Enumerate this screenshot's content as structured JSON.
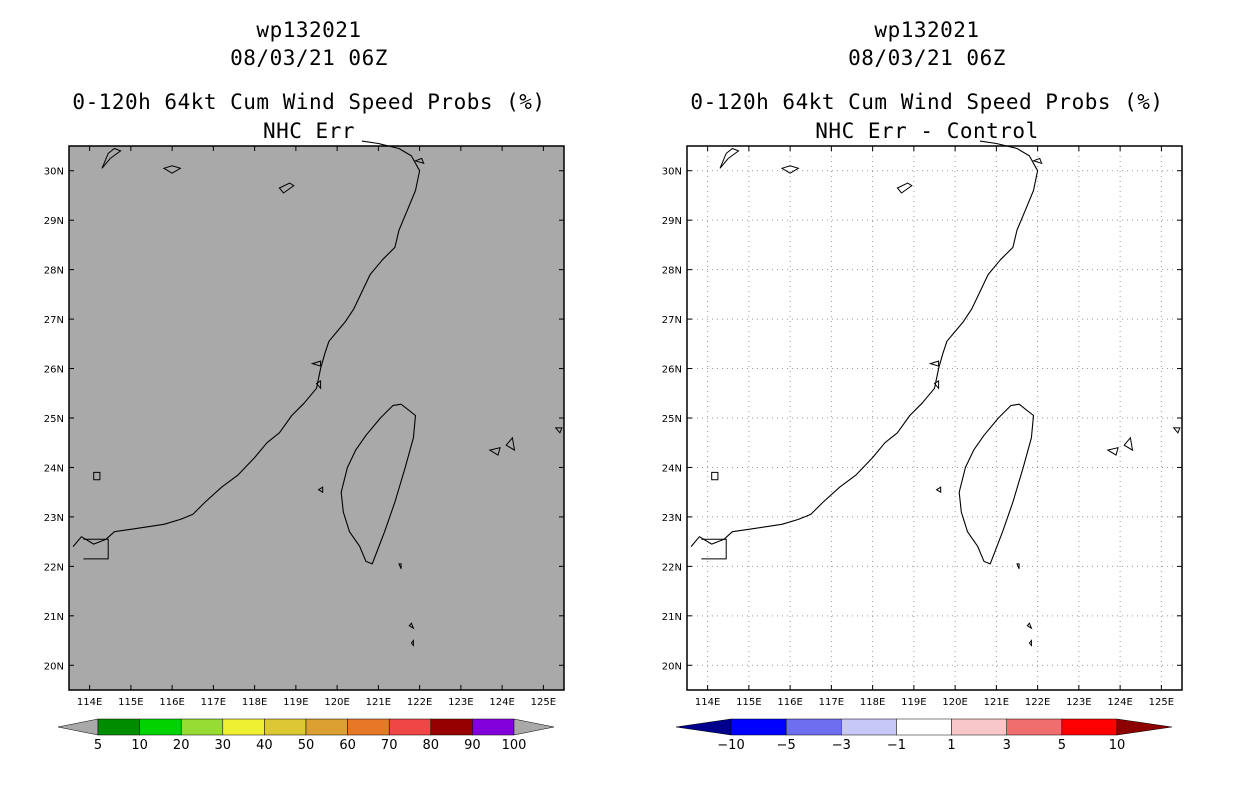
{
  "panels": [
    {
      "id": "left",
      "title_lines": [
        "wp132021",
        "08/03/21 06Z",
        "0-120h 64kt Cum Wind Speed Probs (%)",
        "NHC Err"
      ],
      "map_background": "#a9a9a9",
      "gridlines": false,
      "colorbar": {
        "colors": [
          "#a9a9a9",
          "#008c00",
          "#00d200",
          "#96dc32",
          "#f0f032",
          "#dcc832",
          "#dca032",
          "#e67828",
          "#f04646",
          "#960000",
          "#8200dc",
          "#a9a9a9"
        ],
        "labels": [
          "5",
          "10",
          "20",
          "30",
          "40",
          "50",
          "60",
          "70",
          "80",
          "90",
          "100"
        ]
      }
    },
    {
      "id": "right",
      "title_lines": [
        "wp132021",
        "08/03/21 06Z",
        "0-120h 64kt Cum Wind Speed Probs (%)",
        "NHC Err - Control"
      ],
      "map_background": "#ffffff",
      "gridlines": true,
      "colorbar": {
        "colors": [
          "#00008c",
          "#0000ff",
          "#6e6ef0",
          "#c8c8f8",
          "#ffffff",
          "#f8c8c8",
          "#f06e6e",
          "#ff0000",
          "#8c0000"
        ],
        "labels": [
          "-10",
          "-5",
          "-3",
          "-1",
          "1",
          "3",
          "5",
          "10"
        ]
      }
    }
  ],
  "axes": {
    "x_labels": [
      "114E",
      "115E",
      "116E",
      "117E",
      "118E",
      "119E",
      "120E",
      "121E",
      "122E",
      "123E",
      "124E",
      "125E"
    ],
    "y_labels": [
      "20N",
      "21N",
      "22N",
      "23N",
      "24N",
      "25N",
      "26N",
      "27N",
      "28N",
      "29N",
      "30N"
    ],
    "lon_range": [
      113.5,
      125.5
    ],
    "lat_range": [
      19.5,
      30.5
    ]
  },
  "geography": {
    "coast": [
      [
        113.6,
        22.4
      ],
      [
        113.8,
        22.6
      ],
      [
        114.1,
        22.45
      ],
      [
        114.4,
        22.55
      ],
      [
        114.6,
        22.7
      ],
      [
        115.0,
        22.75
      ],
      [
        115.4,
        22.8
      ],
      [
        115.8,
        22.85
      ],
      [
        116.2,
        22.95
      ],
      [
        116.5,
        23.05
      ],
      [
        116.8,
        23.3
      ],
      [
        117.2,
        23.6
      ],
      [
        117.6,
        23.85
      ],
      [
        118.0,
        24.2
      ],
      [
        118.3,
        24.5
      ],
      [
        118.6,
        24.7
      ],
      [
        118.9,
        25.05
      ],
      [
        119.2,
        25.3
      ],
      [
        119.5,
        25.6
      ],
      [
        119.6,
        26.0
      ],
      [
        119.7,
        26.3
      ],
      [
        119.8,
        26.55
      ],
      [
        120.0,
        26.75
      ],
      [
        120.2,
        26.95
      ],
      [
        120.4,
        27.2
      ],
      [
        120.6,
        27.55
      ],
      [
        120.8,
        27.9
      ],
      [
        121.1,
        28.2
      ],
      [
        121.4,
        28.45
      ],
      [
        121.5,
        28.8
      ],
      [
        121.7,
        29.2
      ],
      [
        121.9,
        29.6
      ],
      [
        122.0,
        30.0
      ],
      [
        121.8,
        30.3
      ],
      [
        121.5,
        30.45
      ],
      [
        121.0,
        30.55
      ],
      [
        120.6,
        30.6
      ]
    ],
    "taiwan": [
      [
        121.55,
        25.28
      ],
      [
        121.9,
        25.05
      ],
      [
        121.85,
        24.6
      ],
      [
        121.65,
        24.0
      ],
      [
        121.4,
        23.3
      ],
      [
        121.15,
        22.7
      ],
      [
        120.85,
        22.05
      ],
      [
        120.7,
        22.1
      ],
      [
        120.55,
        22.4
      ],
      [
        120.3,
        22.7
      ],
      [
        120.15,
        23.1
      ],
      [
        120.1,
        23.5
      ],
      [
        120.25,
        24.0
      ],
      [
        120.45,
        24.35
      ],
      [
        120.7,
        24.65
      ],
      [
        121.05,
        25.0
      ],
      [
        121.35,
        25.25
      ]
    ],
    "hong_kong_box": [
      [
        113.85,
        22.55
      ],
      [
        114.45,
        22.55
      ],
      [
        114.45,
        22.15
      ],
      [
        113.85,
        22.15
      ]
    ],
    "islands": [
      [
        [
          114.45,
          30.35
        ],
        [
          114.6,
          30.45
        ],
        [
          114.75,
          30.4
        ],
        [
          114.5,
          30.25
        ],
        [
          114.3,
          30.05
        ],
        [
          114.45,
          30.35
        ]
      ],
      [
        [
          115.8,
          30.05
        ],
        [
          116.0,
          30.1
        ],
        [
          116.2,
          30.05
        ],
        [
          116.0,
          29.95
        ],
        [
          115.8,
          30.05
        ]
      ],
      [
        [
          118.6,
          29.65
        ],
        [
          118.85,
          29.75
        ],
        [
          118.95,
          29.7
        ],
        [
          118.7,
          29.55
        ],
        [
          118.6,
          29.65
        ]
      ],
      [
        [
          114.1,
          23.9
        ],
        [
          114.25,
          23.9
        ],
        [
          114.25,
          23.75
        ],
        [
          114.1,
          23.75
        ],
        [
          114.1,
          23.9
        ]
      ],
      [
        [
          119.4,
          26.1
        ],
        [
          119.6,
          26.15
        ],
        [
          119.6,
          26.05
        ],
        [
          119.4,
          26.1
        ]
      ],
      [
        [
          119.5,
          25.7
        ],
        [
          119.6,
          25.75
        ],
        [
          119.6,
          25.6
        ],
        [
          119.5,
          25.7
        ]
      ],
      [
        [
          119.55,
          23.55
        ],
        [
          119.65,
          23.6
        ],
        [
          119.65,
          23.5
        ],
        [
          119.55,
          23.55
        ]
      ],
      [
        [
          121.5,
          22.05
        ],
        [
          121.55,
          22.05
        ],
        [
          121.55,
          21.95
        ],
        [
          121.5,
          22.05
        ]
      ],
      [
        [
          121.75,
          20.8
        ],
        [
          121.8,
          20.85
        ],
        [
          121.85,
          20.75
        ],
        [
          121.75,
          20.8
        ]
      ],
      [
        [
          121.8,
          20.45
        ],
        [
          121.85,
          20.5
        ],
        [
          121.85,
          20.4
        ],
        [
          121.8,
          20.45
        ]
      ],
      [
        [
          123.7,
          24.35
        ],
        [
          123.95,
          24.4
        ],
        [
          123.9,
          24.25
        ],
        [
          123.7,
          24.35
        ]
      ],
      [
        [
          124.1,
          24.45
        ],
        [
          124.25,
          24.6
        ],
        [
          124.3,
          24.35
        ],
        [
          124.1,
          24.45
        ]
      ],
      [
        [
          125.3,
          24.8
        ],
        [
          125.45,
          24.8
        ],
        [
          125.4,
          24.7
        ],
        [
          125.3,
          24.8
        ]
      ],
      [
        [
          121.9,
          30.2
        ],
        [
          122.05,
          30.25
        ],
        [
          122.1,
          30.15
        ],
        [
          121.9,
          30.2
        ]
      ]
    ]
  }
}
